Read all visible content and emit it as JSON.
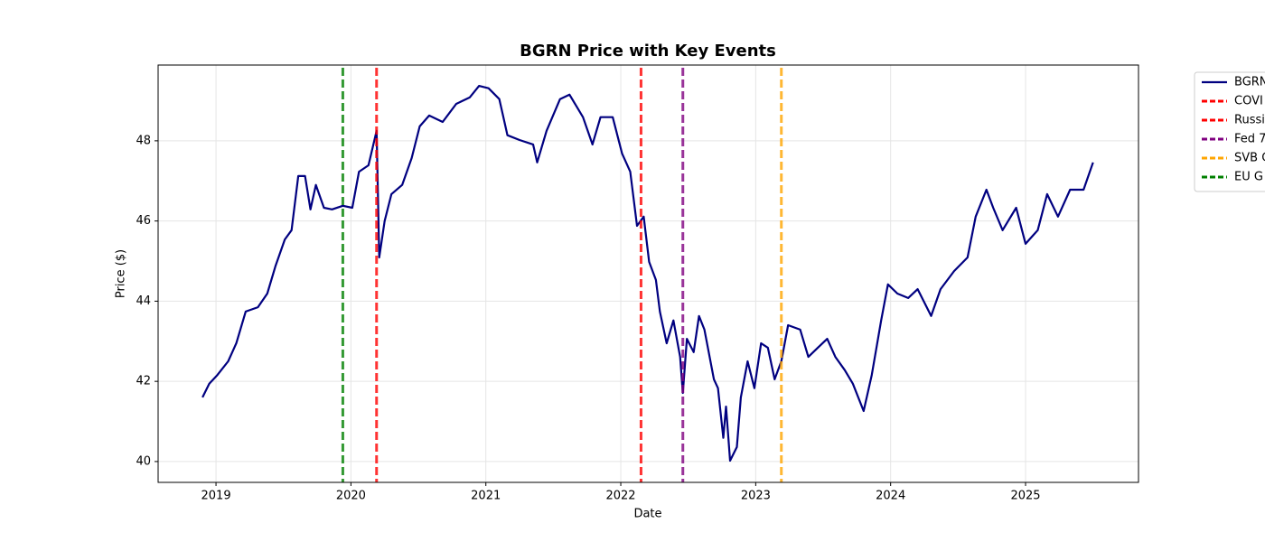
{
  "chart_data": {
    "type": "line",
    "title": "BGRN Price with Key Events",
    "x_label": "Date",
    "y_label": "Price ($)",
    "x": [
      2018.9,
      2018.95,
      2019.01,
      2019.09,
      2019.15,
      2019.22,
      2019.31,
      2019.38,
      2019.44,
      2019.51,
      2019.56,
      2019.61,
      2019.66,
      2019.7,
      2019.74,
      2019.8,
      2019.86,
      2019.94,
      2020.01,
      2020.06,
      2020.13,
      2020.19,
      2020.21,
      2020.25,
      2020.3,
      2020.38,
      2020.45,
      2020.51,
      2020.58,
      2020.68,
      2020.78,
      2020.88,
      2020.95,
      2021.02,
      2021.1,
      2021.16,
      2021.25,
      2021.35,
      2021.38,
      2021.45,
      2021.55,
      2021.62,
      2021.72,
      2021.79,
      2021.85,
      2021.94,
      2022.01,
      2022.07,
      2022.12,
      2022.17,
      2022.21,
      2022.26,
      2022.29,
      2022.34,
      2022.39,
      2022.44,
      2022.46,
      2022.49,
      2022.54,
      2022.58,
      2022.62,
      2022.69,
      2022.72,
      2022.76,
      2022.78,
      2022.81,
      2022.86,
      2022.89,
      2022.94,
      2022.99,
      2023.04,
      2023.09,
      2023.14,
      2023.19,
      2023.24,
      2023.33,
      2023.39,
      2023.46,
      2023.53,
      2023.59,
      2023.66,
      2023.72,
      2023.8,
      2023.86,
      2023.93,
      2023.98,
      2024.05,
      2024.13,
      2024.2,
      2024.3,
      2024.37,
      2024.47,
      2024.57,
      2024.63,
      2024.71,
      2024.76,
      2024.83,
      2024.93,
      2025.0,
      2025.09,
      2025.16,
      2025.24,
      2025.33,
      2025.43,
      2025.5
    ],
    "series": [
      {
        "name": "BGRN",
        "color": "#000080",
        "values": [
          41.6,
          41.94,
          42.16,
          42.5,
          42.95,
          43.74,
          43.85,
          44.19,
          44.87,
          45.54,
          45.77,
          47.12,
          47.12,
          46.29,
          46.9,
          46.33,
          46.29,
          46.38,
          46.33,
          47.23,
          47.39,
          48.25,
          45.09,
          46.0,
          46.67,
          46.9,
          47.57,
          48.36,
          48.63,
          48.47,
          48.92,
          49.08,
          49.37,
          49.31,
          49.04,
          48.14,
          48.02,
          47.91,
          47.46,
          48.25,
          49.04,
          49.15,
          48.59,
          47.91,
          48.59,
          48.59,
          47.68,
          47.23,
          45.88,
          46.11,
          44.98,
          44.53,
          43.74,
          42.95,
          43.52,
          42.61,
          41.71,
          43.06,
          42.73,
          43.63,
          43.29,
          42.05,
          41.83,
          40.59,
          41.37,
          40.02,
          40.36,
          41.6,
          42.5,
          41.83,
          42.95,
          42.84,
          42.05,
          42.5,
          43.4,
          43.29,
          42.61,
          42.84,
          43.06,
          42.61,
          42.28,
          41.94,
          41.26,
          42.16,
          43.52,
          44.42,
          44.19,
          44.08,
          44.3,
          43.63,
          44.3,
          44.75,
          45.09,
          46.11,
          46.78,
          46.33,
          45.77,
          46.33,
          45.43,
          45.77,
          46.67,
          46.11,
          46.78,
          46.78,
          47.46
        ]
      }
    ],
    "events": [
      {
        "name": "COVI",
        "x": 2020.19,
        "color": "#ff0000"
      },
      {
        "name": "Russi",
        "x": 2022.15,
        "color": "#ff0000"
      },
      {
        "name": "Fed 7",
        "x": 2022.46,
        "color": "#800080"
      },
      {
        "name": "SVB C",
        "x": 2023.19,
        "color": "#ffa500"
      },
      {
        "name": "EU G",
        "x": 2019.94,
        "color": "#008000"
      }
    ],
    "xlim": [
      2018.571,
      2025.837
    ],
    "xticks": [
      2019,
      2020,
      2021,
      2022,
      2023,
      2024,
      2025
    ],
    "ylim": [
      39.48,
      49.89
    ],
    "yticks": [
      40,
      42,
      44,
      46,
      48
    ],
    "grid": true,
    "legend": "outside-right"
  }
}
